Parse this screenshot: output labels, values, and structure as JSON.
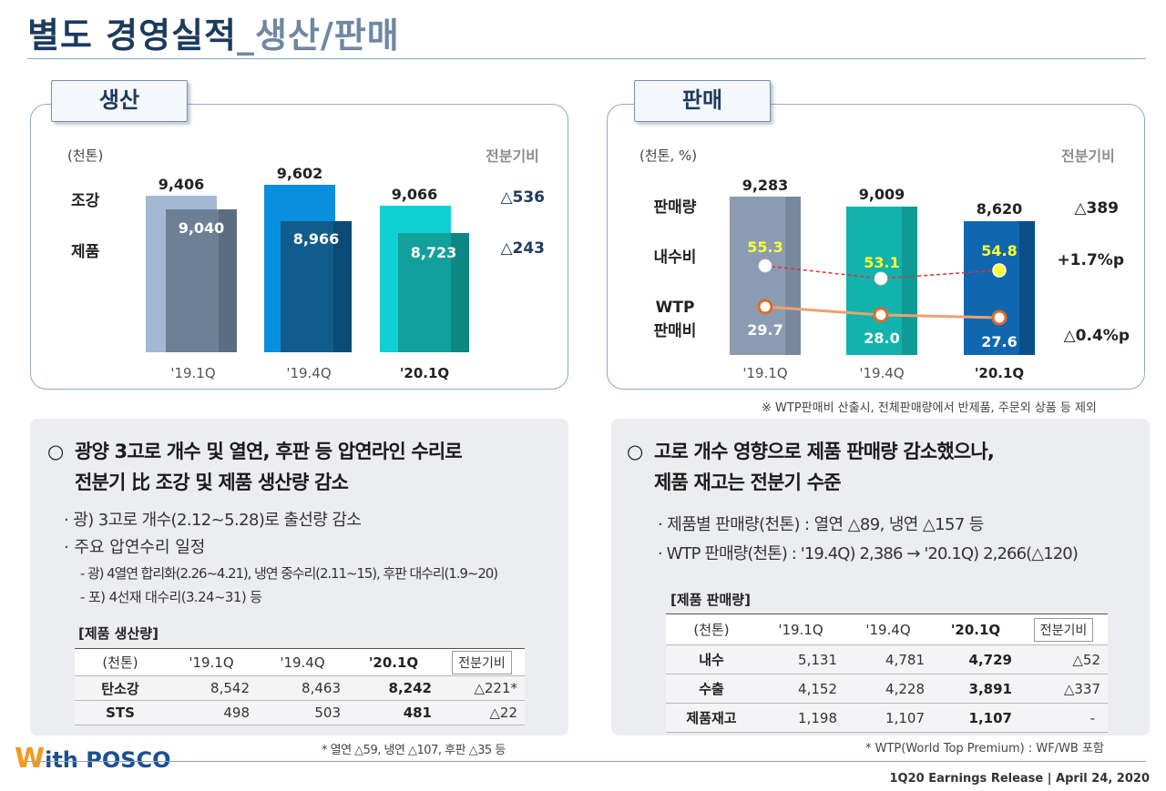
{
  "header": {
    "title": "별도 경영실적",
    "subtitle": "_생산/판매"
  },
  "production": {
    "tab_label": "생산",
    "unit": "(천톤)",
    "compare_head": "전분기비",
    "row_labels": [
      "조강",
      "제품"
    ],
    "diffs": [
      "△536",
      "△243"
    ],
    "quarters": [
      "'19.1Q",
      "'19.4Q",
      "'20.1Q"
    ],
    "steel_values": [
      "9,406",
      "9,602",
      "9,066"
    ],
    "product_values": [
      "9,040",
      "8,966",
      "8,723"
    ]
  },
  "sales": {
    "tab_label": "판매",
    "unit": "(천톤, %)",
    "compare_head": "전분기비",
    "row_labels": [
      "판매량",
      "내수비",
      "WTP",
      "판매비"
    ],
    "diffs": [
      "△389",
      "+1.7%p",
      "△0.4%p"
    ],
    "quarters": [
      "'19.1Q",
      "'19.4Q",
      "'20.1Q"
    ],
    "volume_values": [
      "9,283",
      "9,009",
      "8,620"
    ],
    "domestic_ratio": [
      "55.3",
      "53.1",
      "54.8"
    ],
    "wtp_ratio": [
      "29.7",
      "28.0",
      "27.6"
    ],
    "footnote": "※ WTP판매비 산출시, 전체판매량에서 반제품, 주문외 상품 등 제외"
  },
  "chart_data": [
    {
      "type": "bar",
      "title": "생산",
      "ylabel": "(천톤)",
      "categories": [
        "'19.1Q",
        "'19.4Q",
        "'20.1Q"
      ],
      "series": [
        {
          "name": "조강",
          "values": [
            9406,
            9602,
            9066
          ]
        },
        {
          "name": "제품",
          "values": [
            9040,
            8966,
            8723
          ]
        }
      ]
    },
    {
      "type": "bar",
      "title": "판매",
      "ylabel": "(천톤, %)",
      "categories": [
        "'19.1Q",
        "'19.4Q",
        "'20.1Q"
      ],
      "series": [
        {
          "name": "판매량",
          "values": [
            9283,
            9009,
            8620
          ]
        },
        {
          "name": "내수비",
          "type": "line",
          "values": [
            55.3,
            53.1,
            54.8
          ]
        },
        {
          "name": "WTP 판매비",
          "type": "line",
          "values": [
            29.7,
            28.0,
            27.6
          ]
        }
      ]
    }
  ],
  "left_box": {
    "headline_1": "광양 3고로 개수 및 열연, 후판 등 압연라인 수리로",
    "headline_2": "전분기 比 조강 및 제품 생산량 감소",
    "bullet_1": "· 광) 3고로 개수(2.12~5.28)로 출선량 감소",
    "bullet_2": "· 주요 압연수리 일정",
    "sub_1": "- 광) 4열연 합리화(2.26~4.21), 냉연 중수리(2.11~15), 후판 대수리(1.9~20)",
    "sub_2": "- 포) 4선재 대수리(3.24~31) 등",
    "table_title": "[제품 생산량]",
    "table_head": [
      "(천톤)",
      "'19.1Q",
      "'19.4Q",
      "'20.1Q",
      "전분기비"
    ],
    "rows": [
      {
        "label": "탄소강",
        "v1": "8,542",
        "v2": "8,463",
        "v3": "8,242",
        "cmp": "△221*"
      },
      {
        "label": "STS",
        "v1": "498",
        "v2": "503",
        "v3": "481",
        "cmp": "△22"
      }
    ],
    "footnote": "* 열연 △59, 냉연 △107, 후판 △35  등"
  },
  "right_box": {
    "headline_1": "고로 개수 영향으로 제품 판매량 감소했으나,",
    "headline_2": "제품 재고는 전분기 수준",
    "bullet_1": "· 제품별 판매량(천톤) : 열연 △89, 냉연 △157 등",
    "bullet_2": "· WTP 판매량(천톤) : '19.4Q) 2,386 → '20.1Q) 2,266(△120)",
    "table_title": "[제품 판매량]",
    "table_head": [
      "(천톤)",
      "'19.1Q",
      "'19.4Q",
      "'20.1Q",
      "전분기비"
    ],
    "rows": [
      {
        "label": "내수",
        "v1": "5,131",
        "v2": "4,781",
        "v3": "4,729",
        "cmp": "△52"
      },
      {
        "label": "수출",
        "v1": "4,152",
        "v2": "4,228",
        "v3": "3,891",
        "cmp": "△337"
      },
      {
        "label": "제품재고",
        "v1": "1,198",
        "v2": "1,107",
        "v3": "1,107",
        "cmp": "-"
      }
    ],
    "footnote": "* WTP(World Top Premium) : WF/WB 포함"
  },
  "circle_mark": "○",
  "footer": {
    "logo_w": "W",
    "logo_text": "ith POSCO",
    "release": "1Q20 Earnings Release  |  April 24, 2020"
  }
}
